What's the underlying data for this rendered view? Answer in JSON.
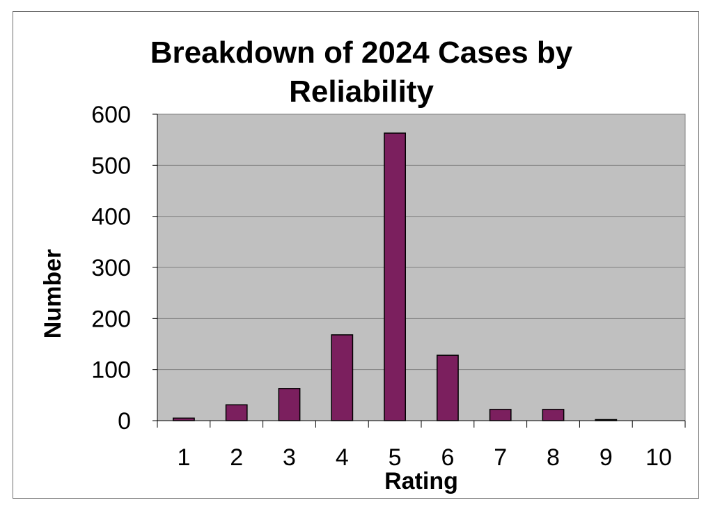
{
  "chart_data": {
    "type": "bar",
    "title": "Breakdown of 2024 Cases by Reliability",
    "title_lines": [
      "Breakdown of 2024 Cases by",
      "Reliability"
    ],
    "xlabel": "Rating",
    "ylabel": "Number",
    "categories": [
      "1",
      "2",
      "3",
      "4",
      "5",
      "6",
      "7",
      "8",
      "9",
      "10"
    ],
    "values": [
      5,
      31,
      63,
      168,
      563,
      128,
      22,
      22,
      2,
      0
    ],
    "ylim": [
      0,
      600
    ],
    "yticks": [
      "0",
      "100",
      "200",
      "300",
      "400",
      "500",
      "600"
    ],
    "grid": true,
    "legend": "none",
    "colors": {
      "bar": "#7b1f5e",
      "plot_background": "#c0c0c0",
      "gridline": "#808080"
    }
  }
}
